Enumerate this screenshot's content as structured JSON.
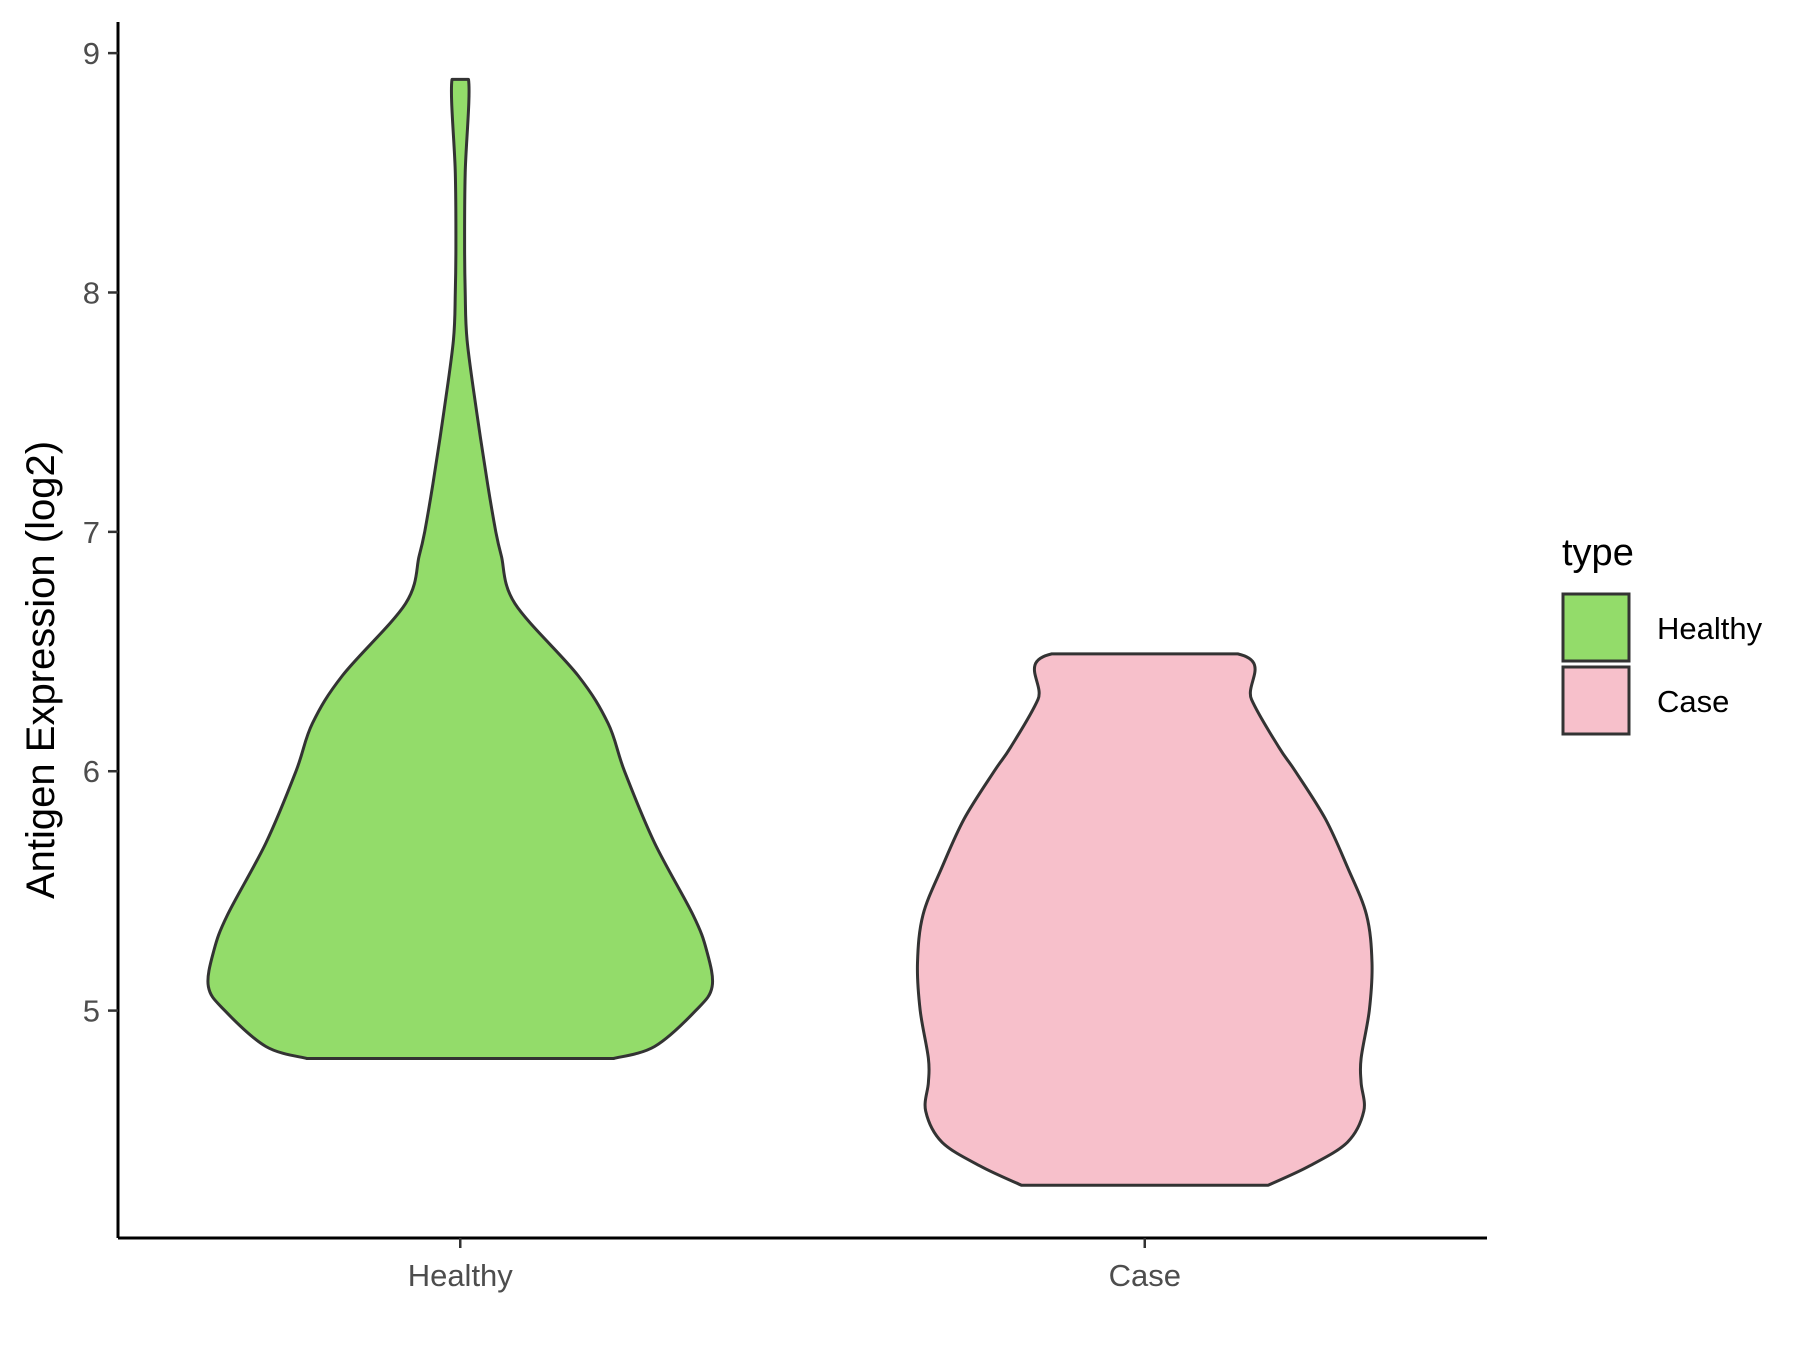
{
  "chart_data": {
    "type": "violin",
    "title": "",
    "xlabel": "",
    "ylabel": "Antigen Expression (log2)",
    "ylim": [
      4.05,
      9.13
    ],
    "yticks": [
      5,
      6,
      7,
      8,
      9
    ],
    "grid": false,
    "legend": {
      "title": "type",
      "placement": "right",
      "entries": [
        {
          "label": "Healthy",
          "color": "#93DC6A"
        },
        {
          "label": "Case",
          "color": "#F7C0CB"
        }
      ]
    },
    "categories": [
      "Healthy",
      "Case"
    ],
    "series": [
      {
        "name": "Healthy",
        "color": "#93DC6A",
        "min": 4.8,
        "max": 8.9,
        "density_profile": [
          [
            4.8,
            0.56
          ],
          [
            4.85,
            0.71
          ],
          [
            5.0,
            0.86
          ],
          [
            5.1,
            0.92
          ],
          [
            5.25,
            0.9
          ],
          [
            5.4,
            0.85
          ],
          [
            5.7,
            0.71
          ],
          [
            6.0,
            0.6
          ],
          [
            6.2,
            0.54
          ],
          [
            6.4,
            0.43
          ],
          [
            6.7,
            0.2
          ],
          [
            6.9,
            0.15
          ],
          [
            7.0,
            0.13
          ],
          [
            7.2,
            0.1
          ],
          [
            7.5,
            0.06
          ],
          [
            7.8,
            0.025
          ],
          [
            8.0,
            0.018
          ],
          [
            8.2,
            0.016
          ],
          [
            8.5,
            0.018
          ],
          [
            8.89,
            0.03
          ]
        ]
      },
      {
        "name": "Case",
        "color": "#F7C0CB",
        "min": 4.27,
        "max": 6.49,
        "density_profile": [
          [
            4.27,
            0.45
          ],
          [
            4.35,
            0.6
          ],
          [
            4.45,
            0.74
          ],
          [
            4.58,
            0.8
          ],
          [
            4.7,
            0.79
          ],
          [
            4.8,
            0.79
          ],
          [
            5.0,
            0.82
          ],
          [
            5.2,
            0.83
          ],
          [
            5.4,
            0.81
          ],
          [
            5.6,
            0.74
          ],
          [
            5.8,
            0.66
          ],
          [
            6.0,
            0.55
          ],
          [
            6.1,
            0.49
          ],
          [
            6.3,
            0.39
          ],
          [
            6.49,
            0.34
          ]
        ]
      }
    ]
  }
}
